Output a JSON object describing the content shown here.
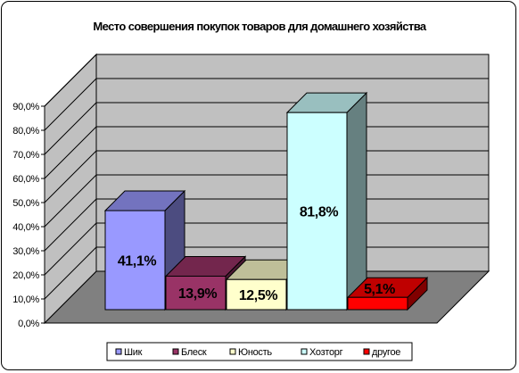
{
  "chart_data": {
    "type": "bar",
    "title": "Место совершения покупок товаров для домашнего хозяйства",
    "categories": [
      "Шик",
      "Блеск",
      "Юность",
      "Хозторг",
      "другое"
    ],
    "values": [
      41.1,
      13.9,
      12.5,
      81.8,
      5.1
    ],
    "data_labels": [
      "41,1%",
      "13,9%",
      "12,5%",
      "81,8%",
      "5,1%"
    ],
    "colors": {
      "front": [
        "#9999ff",
        "#993366",
        "#ffffcc",
        "#ccffff",
        "#ff0000"
      ],
      "side": [
        "#4c4c80",
        "#4c1a33",
        "#808066",
        "#668080",
        "#800000"
      ],
      "top": [
        "#7373bf",
        "#73264d",
        "#bfbf99",
        "#99bfbf",
        "#bf0000"
      ],
      "wall": "#c0c0c0",
      "floor": "#808080"
    },
    "ylim": [
      0,
      90
    ],
    "yticks": [
      "0,0%",
      "10,0%",
      "20,0%",
      "30,0%",
      "40,0%",
      "50,0%",
      "60,0%",
      "70,0%",
      "80,0%",
      "90,0%"
    ],
    "grid": true,
    "legend_position": "bottom",
    "legend": [
      "Шик",
      "Блеск",
      "Юность",
      "Хозторг",
      "другое"
    ],
    "xlabel": "",
    "ylabel": ""
  }
}
